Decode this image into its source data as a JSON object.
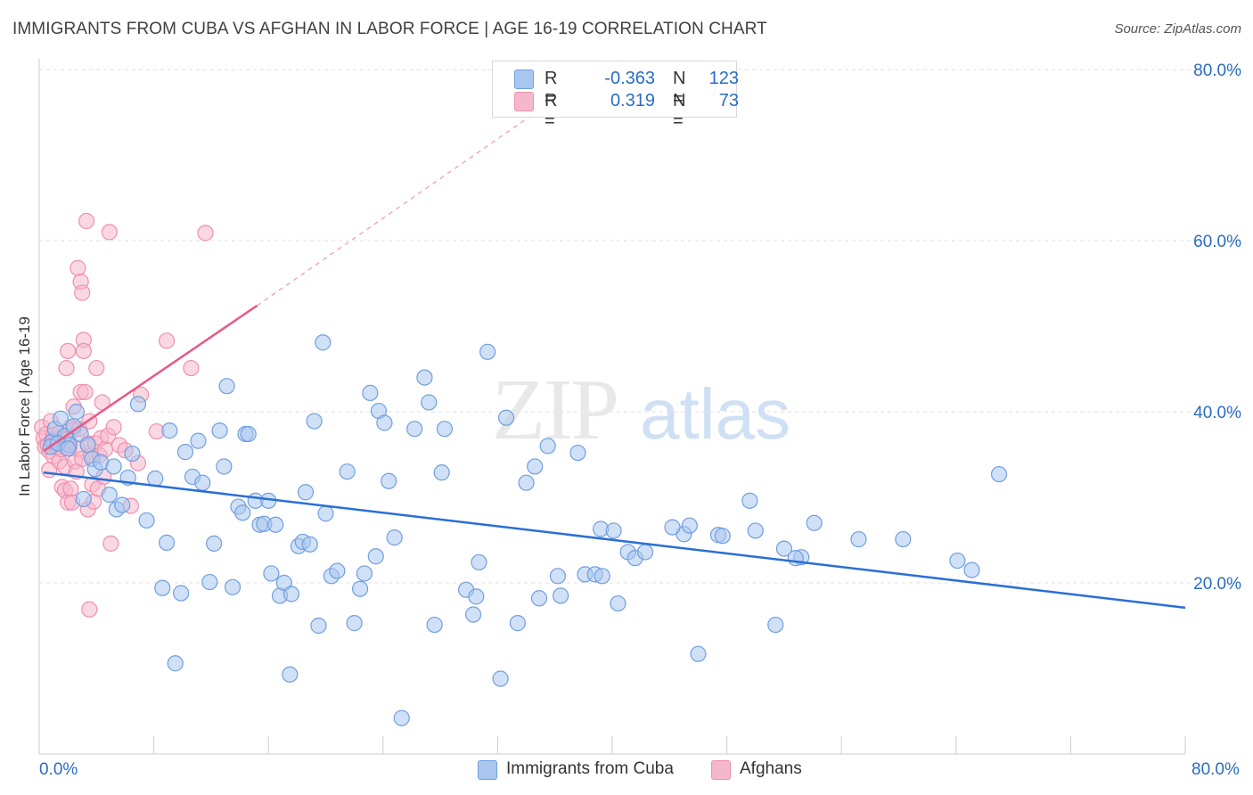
{
  "header": {
    "title": "IMMIGRANTS FROM CUBA VS AFGHAN IN LABOR FORCE | AGE 16-19 CORRELATION CHART",
    "source": "Source: ZipAtlas.com"
  },
  "legend": {
    "r_label": "R =",
    "n_label": "N =",
    "rows": [
      {
        "r": "-0.363",
        "n": "123",
        "color": "#a9c6ef"
      },
      {
        "r": "0.319",
        "n": "73",
        "color": "#f5b8cb"
      }
    ]
  },
  "chart_data": {
    "type": "scatter",
    "title": "IMMIGRANTS FROM CUBA VS AFGHAN IN LABOR FORCE | AGE 16-19 CORRELATION CHART",
    "xlabel": "",
    "ylabel": "In Labor Force | Age 16-19",
    "xlim": [
      0,
      80
    ],
    "ylim": [
      0,
      80
    ],
    "x_tick_labels": [
      "0.0%",
      "80.0%"
    ],
    "y_tick_labels": [
      "20.0%",
      "40.0%",
      "60.0%",
      "80.0%"
    ],
    "y_ticks": [
      20,
      40,
      60,
      80
    ],
    "grid": "horizontal dashed",
    "legend_position": "bottom-center",
    "watermark": "ZIPatlas",
    "series": [
      {
        "name": "Immigrants from Cuba",
        "color": "#6f9fe0",
        "fill": "#a9c6ef",
        "trend_color": "#2a6fd4",
        "trend": {
          "x0": 0.3,
          "y0": 32.9,
          "x1": 80.0,
          "y1": 17.1
        },
        "points": [
          [
            0.9,
            36.5
          ],
          [
            1.1,
            38.0
          ],
          [
            1.5,
            39.2
          ],
          [
            1.8,
            37.2
          ],
          [
            2.1,
            36.1
          ],
          [
            2.4,
            38.3
          ],
          [
            2.6,
            40.0
          ],
          [
            2.9,
            37.4
          ],
          [
            3.1,
            29.8
          ],
          [
            3.4,
            36.1
          ],
          [
            3.7,
            34.5
          ],
          [
            3.9,
            33.3
          ],
          [
            4.3,
            34.1
          ],
          [
            4.9,
            30.3
          ],
          [
            5.2,
            33.6
          ],
          [
            5.4,
            28.6
          ],
          [
            5.8,
            29.1
          ],
          [
            6.2,
            32.3
          ],
          [
            6.5,
            35.1
          ],
          [
            6.9,
            40.9
          ],
          [
            7.5,
            27.3
          ],
          [
            8.1,
            32.2
          ],
          [
            8.6,
            19.4
          ],
          [
            8.9,
            24.7
          ],
          [
            9.1,
            37.8
          ],
          [
            9.5,
            10.6
          ],
          [
            9.9,
            18.8
          ],
          [
            10.2,
            35.3
          ],
          [
            10.7,
            32.4
          ],
          [
            11.1,
            36.6
          ],
          [
            11.4,
            31.7
          ],
          [
            11.9,
            20.1
          ],
          [
            12.2,
            24.6
          ],
          [
            12.6,
            37.8
          ],
          [
            12.9,
            33.6
          ],
          [
            13.1,
            43.0
          ],
          [
            13.5,
            19.5
          ],
          [
            13.9,
            28.9
          ],
          [
            14.2,
            28.2
          ],
          [
            14.4,
            37.4
          ],
          [
            14.6,
            37.4
          ],
          [
            15.1,
            29.6
          ],
          [
            15.4,
            26.8
          ],
          [
            15.7,
            26.9
          ],
          [
            16.0,
            29.6
          ],
          [
            16.2,
            21.1
          ],
          [
            16.5,
            26.8
          ],
          [
            16.8,
            18.5
          ],
          [
            17.1,
            20.0
          ],
          [
            17.5,
            9.3
          ],
          [
            17.6,
            18.7
          ],
          [
            18.1,
            24.3
          ],
          [
            18.4,
            24.8
          ],
          [
            18.6,
            30.6
          ],
          [
            18.9,
            24.5
          ],
          [
            19.2,
            38.9
          ],
          [
            19.5,
            15.0
          ],
          [
            19.8,
            48.1
          ],
          [
            20.0,
            28.1
          ],
          [
            20.4,
            20.8
          ],
          [
            20.8,
            21.4
          ],
          [
            21.5,
            33.0
          ],
          [
            22.0,
            15.3
          ],
          [
            22.4,
            19.3
          ],
          [
            22.7,
            21.1
          ],
          [
            23.1,
            42.2
          ],
          [
            23.5,
            23.1
          ],
          [
            23.7,
            40.1
          ],
          [
            24.1,
            38.7
          ],
          [
            24.4,
            31.9
          ],
          [
            24.8,
            25.3
          ],
          [
            25.3,
            4.2
          ],
          [
            26.2,
            38.0
          ],
          [
            27.2,
            41.1
          ],
          [
            27.6,
            15.1
          ],
          [
            28.1,
            32.9
          ],
          [
            28.3,
            38.0
          ],
          [
            29.8,
            19.2
          ],
          [
            30.3,
            16.3
          ],
          [
            30.5,
            18.4
          ],
          [
            30.7,
            22.4
          ],
          [
            31.3,
            47.0
          ],
          [
            32.2,
            8.8
          ],
          [
            32.6,
            39.3
          ],
          [
            33.4,
            15.3
          ],
          [
            34.0,
            31.7
          ],
          [
            34.6,
            33.6
          ],
          [
            34.9,
            18.2
          ],
          [
            35.5,
            36.0
          ],
          [
            36.2,
            20.8
          ],
          [
            36.4,
            18.5
          ],
          [
            37.6,
            35.2
          ],
          [
            38.1,
            21.0
          ],
          [
            38.8,
            21.0
          ],
          [
            39.2,
            26.3
          ],
          [
            39.3,
            20.8
          ],
          [
            40.1,
            26.1
          ],
          [
            40.4,
            17.6
          ],
          [
            41.1,
            23.6
          ],
          [
            41.6,
            22.9
          ],
          [
            42.3,
            23.6
          ],
          [
            45.0,
            25.7
          ],
          [
            45.4,
            26.7
          ],
          [
            46.0,
            11.7
          ],
          [
            47.4,
            25.6
          ],
          [
            47.7,
            25.5
          ],
          [
            49.6,
            29.6
          ],
          [
            50.0,
            26.1
          ],
          [
            51.4,
            15.1
          ],
          [
            52.0,
            24.0
          ],
          [
            53.2,
            23.0
          ],
          [
            54.1,
            27.0
          ],
          [
            57.2,
            25.1
          ],
          [
            60.3,
            25.1
          ],
          [
            64.1,
            22.6
          ],
          [
            65.1,
            21.5
          ],
          [
            67.0,
            32.7
          ],
          [
            0.8,
            35.9
          ],
          [
            1.3,
            36.3
          ],
          [
            2.0,
            35.7
          ],
          [
            52.8,
            22.9
          ],
          [
            44.2,
            26.5
          ],
          [
            26.9,
            44.0
          ]
        ]
      },
      {
        "name": "Afghans",
        "color": "#ef8fb0",
        "fill": "#f5b8cb",
        "trend_color": "#e8588a",
        "trend": {
          "x0": 0.3,
          "y0": 35.4,
          "x1": 15.2,
          "y1": 52.4
        },
        "trend_extension": {
          "x0": 15.2,
          "y0": 52.4,
          "x1": 34.5,
          "y1": 74.8
        },
        "points": [
          [
            0.2,
            38.2
          ],
          [
            0.3,
            36.9
          ],
          [
            0.4,
            35.9
          ],
          [
            0.5,
            37.4
          ],
          [
            0.6,
            36.1
          ],
          [
            0.7,
            35.4
          ],
          [
            0.7,
            33.2
          ],
          [
            0.8,
            38.9
          ],
          [
            0.9,
            36.7
          ],
          [
            1.0,
            37.3
          ],
          [
            1.0,
            34.8
          ],
          [
            1.1,
            36.5
          ],
          [
            1.2,
            35.9
          ],
          [
            1.3,
            36.8
          ],
          [
            1.4,
            37.5
          ],
          [
            1.4,
            34.2
          ],
          [
            1.5,
            36.2
          ],
          [
            1.6,
            35.6
          ],
          [
            1.6,
            31.2
          ],
          [
            1.7,
            36.9
          ],
          [
            1.8,
            33.6
          ],
          [
            1.8,
            30.8
          ],
          [
            1.9,
            36.7
          ],
          [
            1.9,
            45.1
          ],
          [
            2.0,
            47.1
          ],
          [
            2.0,
            29.4
          ],
          [
            2.1,
            35.7
          ],
          [
            2.2,
            38.2
          ],
          [
            2.2,
            31.0
          ],
          [
            2.3,
            29.4
          ],
          [
            2.4,
            37.9
          ],
          [
            2.4,
            40.6
          ],
          [
            2.5,
            34.2
          ],
          [
            2.6,
            33.0
          ],
          [
            2.7,
            56.8
          ],
          [
            2.7,
            35.6
          ],
          [
            2.8,
            38.0
          ],
          [
            2.9,
            55.2
          ],
          [
            2.9,
            42.3
          ],
          [
            3.0,
            53.9
          ],
          [
            3.0,
            34.5
          ],
          [
            3.1,
            48.4
          ],
          [
            3.1,
            47.1
          ],
          [
            3.2,
            42.3
          ],
          [
            3.3,
            62.3
          ],
          [
            3.4,
            36.3
          ],
          [
            3.4,
            28.6
          ],
          [
            3.5,
            38.9
          ],
          [
            3.5,
            16.9
          ],
          [
            3.6,
            34.9
          ],
          [
            3.7,
            31.5
          ],
          [
            3.8,
            29.5
          ],
          [
            3.9,
            36.3
          ],
          [
            4.0,
            45.1
          ],
          [
            4.1,
            31.0
          ],
          [
            4.2,
            34.9
          ],
          [
            4.3,
            36.9
          ],
          [
            4.4,
            41.1
          ],
          [
            4.5,
            32.4
          ],
          [
            4.6,
            35.6
          ],
          [
            4.8,
            37.2
          ],
          [
            4.9,
            61.0
          ],
          [
            5.0,
            24.6
          ],
          [
            5.2,
            38.2
          ],
          [
            5.6,
            36.1
          ],
          [
            6.0,
            35.5
          ],
          [
            6.4,
            29.0
          ],
          [
            6.9,
            34.0
          ],
          [
            7.1,
            42.0
          ],
          [
            8.2,
            37.7
          ],
          [
            8.9,
            48.3
          ],
          [
            10.6,
            45.1
          ],
          [
            11.6,
            60.9
          ]
        ]
      }
    ]
  }
}
